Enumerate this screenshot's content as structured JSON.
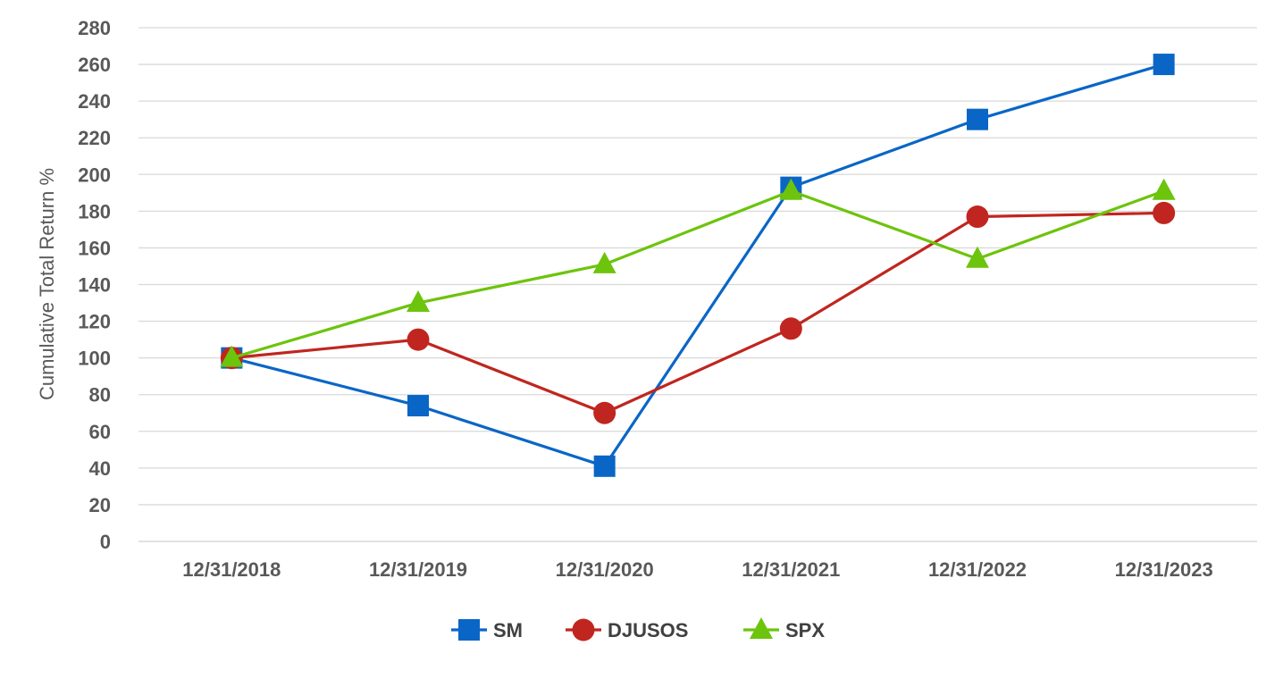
{
  "chart_data": {
    "type": "line",
    "ylabel": "Cumulative Total Return %",
    "xlabel": "",
    "ylim": [
      0,
      280
    ],
    "yticks": [
      "0",
      "20",
      "40",
      "60",
      "80",
      "100",
      "120",
      "140",
      "160",
      "180",
      "200",
      "220",
      "240",
      "260",
      "280"
    ],
    "categories": [
      "12/31/2018",
      "12/31/2019",
      "12/31/2020",
      "12/31/2021",
      "12/31/2022",
      "12/31/2023"
    ],
    "grid": true,
    "legend_position": "bottom",
    "series": [
      {
        "name": "SM",
        "values": [
          100,
          74,
          41,
          193,
          230,
          260
        ],
        "color": "#0a66c6",
        "marker": "square"
      },
      {
        "name": "DJUSOS",
        "values": [
          100,
          110,
          70,
          116,
          177,
          179
        ],
        "color": "#c0261f",
        "marker": "circle"
      },
      {
        "name": "SPX",
        "values": [
          100,
          130,
          151,
          191,
          154,
          191
        ],
        "color": "#6cc40c",
        "marker": "triangle"
      }
    ]
  }
}
